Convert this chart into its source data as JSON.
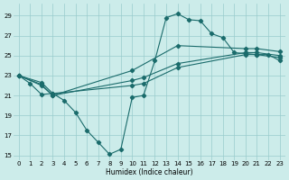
{
  "xlabel": "Humidex (Indice chaleur)",
  "bg_color": "#ccecea",
  "grid_color": "#99cccc",
  "line_color": "#1a6b6b",
  "xlim": [
    -0.5,
    23.5
  ],
  "ylim": [
    14.5,
    30.2
  ],
  "xticks": [
    0,
    1,
    2,
    3,
    4,
    5,
    6,
    7,
    8,
    9,
    10,
    11,
    12,
    13,
    14,
    15,
    16,
    17,
    18,
    19,
    20,
    21,
    22,
    23
  ],
  "yticks": [
    15,
    17,
    19,
    21,
    23,
    25,
    27,
    29
  ],
  "line1_x": [
    0,
    1,
    2,
    3,
    4,
    5,
    6,
    7,
    8,
    9,
    10,
    11,
    12,
    13,
    14,
    15,
    16,
    17,
    18,
    19,
    20,
    21,
    22,
    23
  ],
  "line1_y": [
    23,
    22.2,
    21.1,
    21.2,
    20.5,
    19.3,
    17.5,
    16.3,
    15.1,
    15.6,
    20.8,
    21.0,
    24.5,
    28.8,
    29.2,
    28.6,
    28.5,
    27.2,
    26.8,
    25.3,
    25.2,
    25.1,
    25.1,
    24.5
  ],
  "line2_x": [
    0,
    2,
    3,
    10,
    11,
    14,
    20,
    21,
    23
  ],
  "line2_y": [
    23,
    22.3,
    21.2,
    22.0,
    22.2,
    23.8,
    25.1,
    25.1,
    24.8
  ],
  "line3_x": [
    0,
    2,
    3,
    10,
    11,
    14,
    20,
    21,
    23
  ],
  "line3_y": [
    23,
    22.1,
    21.0,
    22.5,
    22.8,
    24.2,
    25.3,
    25.3,
    25.0
  ],
  "line4_x": [
    0,
    2,
    3,
    10,
    14,
    20,
    21,
    23
  ],
  "line4_y": [
    23,
    22.0,
    21.0,
    23.5,
    26.0,
    25.7,
    25.7,
    25.4
  ],
  "marker": "D",
  "markersize": 2.2,
  "linewidth": 0.8
}
